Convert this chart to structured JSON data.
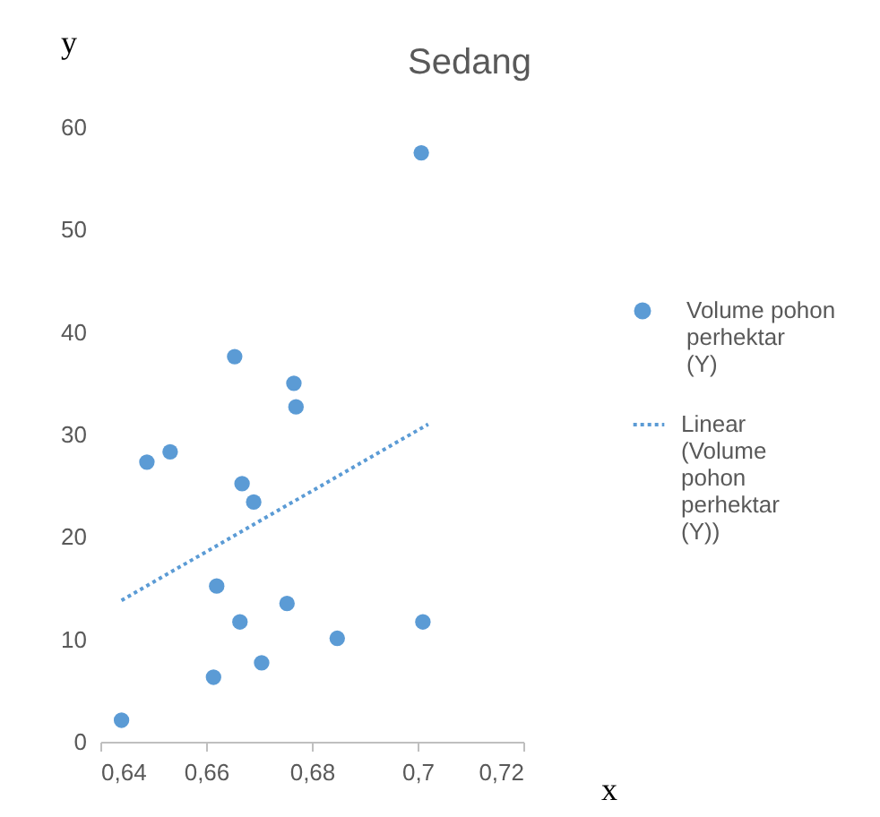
{
  "chart_data": {
    "type": "scatter",
    "title": "Sedang",
    "xlabel": "x",
    "ylabel": "y",
    "xlim": [
      0.64,
      0.72
    ],
    "xticks": [
      {
        "value": 0.64,
        "label": "0,64"
      },
      {
        "value": 0.66,
        "label": "0,66"
      },
      {
        "value": 0.68,
        "label": "0,68"
      },
      {
        "value": 0.7,
        "label": "0,7"
      },
      {
        "value": 0.72,
        "label": "0,72"
      }
    ],
    "ylim": [
      0,
      60
    ],
    "yticks": [
      0,
      10,
      20,
      30,
      40,
      50,
      60
    ],
    "grid": false,
    "legend": "right",
    "x": [
      0.644,
      0.6488,
      0.6532,
      0.6654,
      0.6668,
      0.669,
      0.662,
      0.6664,
      0.6614,
      0.6705,
      0.6753,
      0.6766,
      0.677,
      0.6848,
      0.7007,
      0.701
    ],
    "series": [
      {
        "name": "Volume pohon perhektar (Y)",
        "marker": "circle",
        "color": "#5b9bd5",
        "values": [
          2.1,
          27.3,
          28.3,
          37.6,
          25.2,
          23.4,
          15.2,
          11.7,
          6.3,
          7.7,
          13.5,
          35,
          32.7,
          10.1,
          57.5,
          11.7
        ]
      },
      {
        "name": "Linear (Volume pohon perhektar (Y))",
        "type": "line",
        "line_style": "dotted",
        "color": "#5b9bd5",
        "x": [
          0.644,
          0.702
        ],
        "values": [
          13.8,
          31
        ]
      }
    ]
  }
}
